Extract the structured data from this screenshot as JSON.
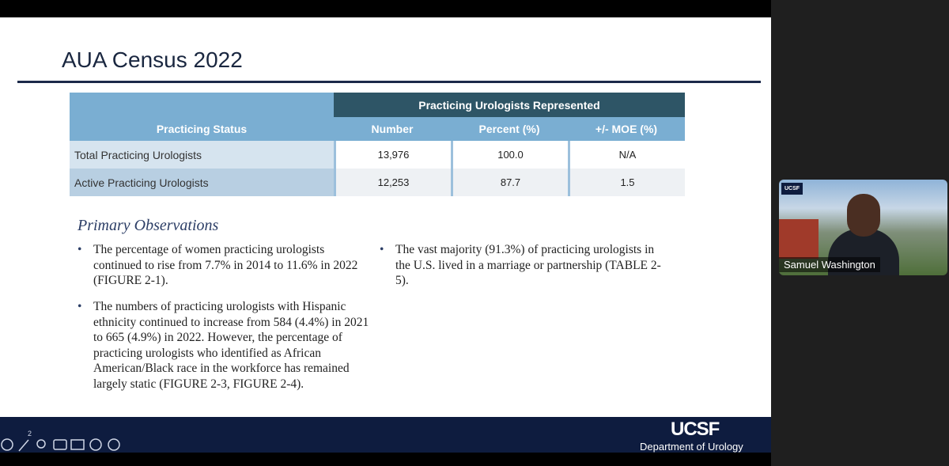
{
  "slide": {
    "title": "AUA Census 2022",
    "table": {
      "group_header": "Practicing Urologists Represented",
      "columns": [
        "Practicing Status",
        "Number",
        "Percent (%)",
        "+/- MOE (%)"
      ],
      "rows": [
        [
          "Total Practicing Urologists",
          "13,976",
          "100.0",
          "N/A"
        ],
        [
          "Active Practicing Urologists",
          "12,253",
          "87.7",
          "1.5"
        ]
      ]
    },
    "observations_heading": "Primary Observations",
    "bullets_left": [
      "The percentage of women practicing urologists continued to rise from 7.7% in 2014 to 11.6% in 2022 (FIGURE 2-1).",
      "The numbers of practicing urologists with Hispanic ethnicity continued to increase from 584 (4.4%) in 2021 to 665 (4.9%) in 2022. However, the percentage of practicing urologists who identified as African American/Black race in the workforce has remained largely static (FIGURE 2-3, FIGURE 2-4)."
    ],
    "bullets_right": [
      "The vast majority (91.3%) of practicing urologists in the U.S. lived in a marriage or partnership (TABLE 2-5)."
    ],
    "footer": {
      "logo": "UCSF",
      "department": "Department of Urology"
    }
  },
  "toolbar": {
    "page_number": "2"
  },
  "video": {
    "badge": "UCSF",
    "participant": "Samuel Washington"
  }
}
